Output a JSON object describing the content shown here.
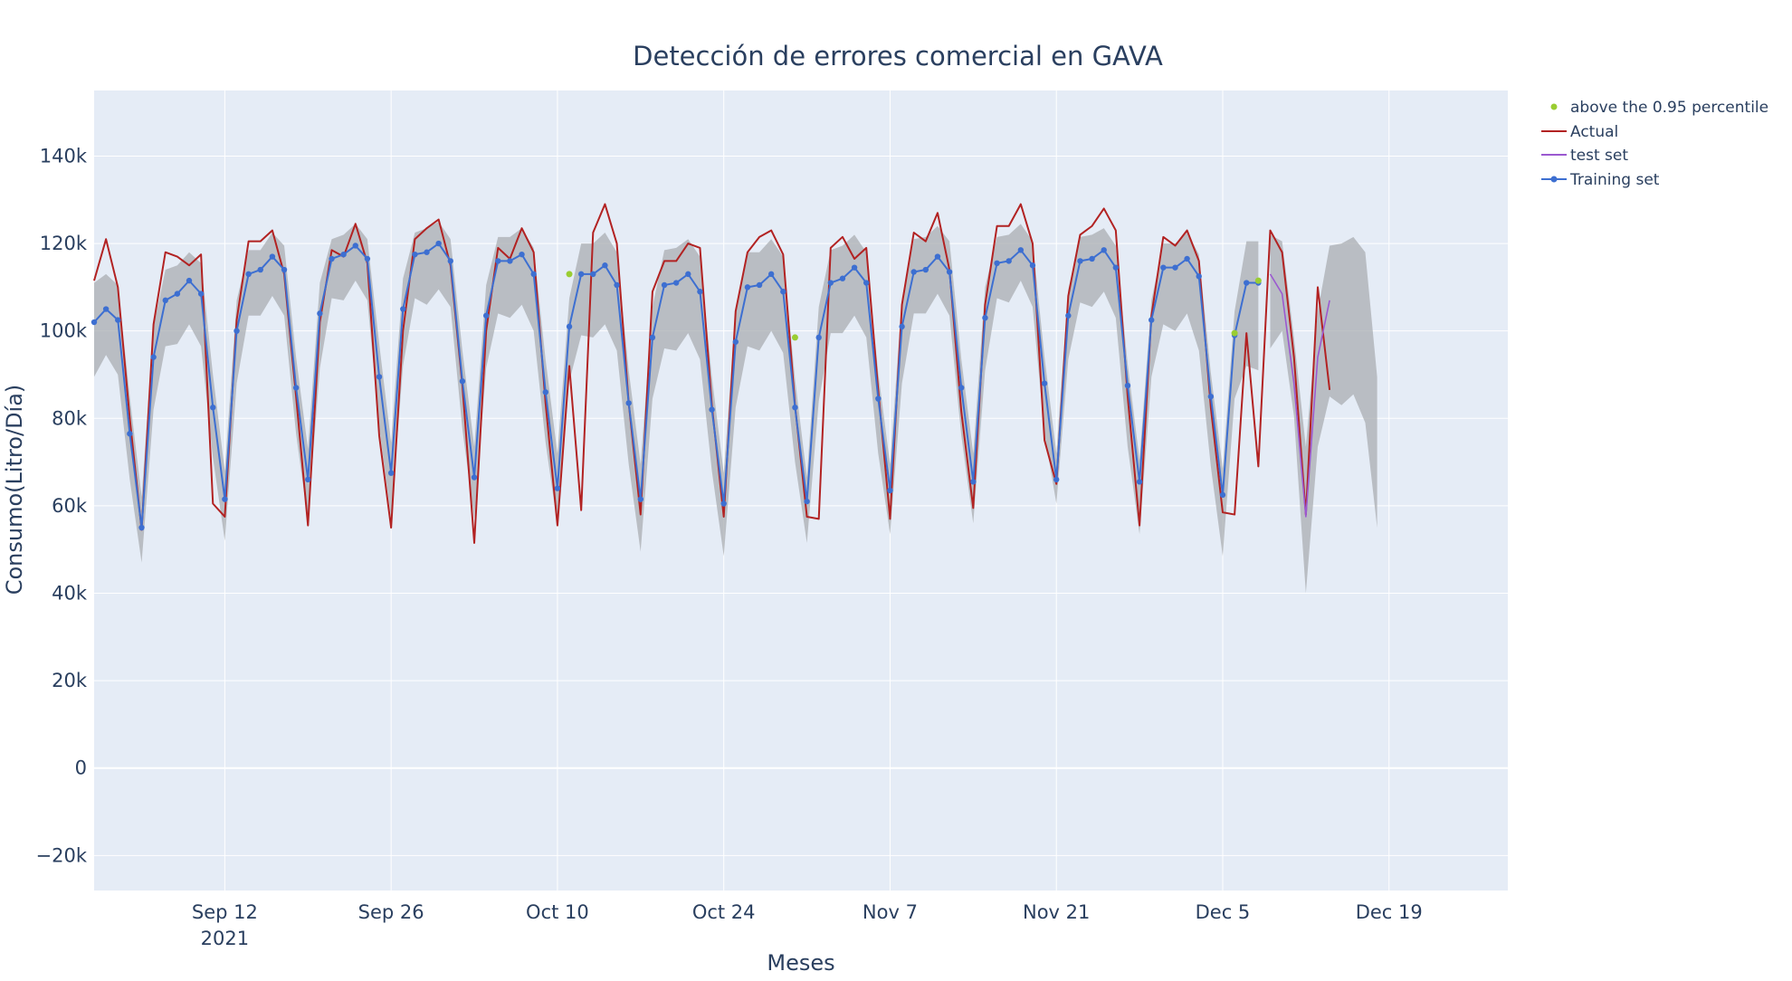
{
  "chart_data": {
    "type": "line",
    "title": "Detección de errores comercial en GAVA",
    "xlabel": "Meses",
    "ylabel": "Consumo(Litro/Día)",
    "x_start": "2021-09-01",
    "xlim": [
      "2021-09-01",
      "2021-12-29"
    ],
    "ylim": [
      -28000,
      155000
    ],
    "x_ticks": [
      {
        "date": "2021-09-12",
        "label": "Sep 12",
        "sublabel": "2021"
      },
      {
        "date": "2021-09-26",
        "label": "Sep 26"
      },
      {
        "date": "2021-10-10",
        "label": "Oct 10"
      },
      {
        "date": "2021-10-24",
        "label": "Oct 24"
      },
      {
        "date": "2021-11-07",
        "label": "Nov 7"
      },
      {
        "date": "2021-11-21",
        "label": "Nov 21"
      },
      {
        "date": "2021-12-05",
        "label": "Dec 5"
      },
      {
        "date": "2021-12-19",
        "label": "Dec 19"
      }
    ],
    "y_ticks": [
      {
        "value": -20000,
        "label": "−20k"
      },
      {
        "value": 0,
        "label": "0"
      },
      {
        "value": 20000,
        "label": "20k"
      },
      {
        "value": 40000,
        "label": "40k"
      },
      {
        "value": 60000,
        "label": "60k"
      },
      {
        "value": 80000,
        "label": "80k"
      },
      {
        "value": 100000,
        "label": "100k"
      },
      {
        "value": 120000,
        "label": "120k"
      },
      {
        "value": 140000,
        "label": "140k"
      }
    ],
    "grid": true,
    "legend_position": "top-right",
    "colors": {
      "plot_background": "#e5ecf6",
      "grid": "#ffffff",
      "band": "#a9adb2",
      "actual": "#b22222",
      "test": "#9b59d0",
      "training": "#3d6fd1",
      "anomaly": "#9acd32"
    },
    "series": [
      {
        "name": "Training set",
        "mode": "lines+markers",
        "y": [
          102000,
          105000,
          102500,
          76500,
          55000,
          94000,
          107000,
          108500,
          111500,
          108500,
          82500,
          61500,
          100000,
          113000,
          114000,
          117000,
          114000,
          87000,
          66000,
          104000,
          116500,
          117500,
          119500,
          116500,
          89500,
          67500,
          105000,
          117500,
          118000,
          120000,
          116000,
          88500,
          66500,
          103500,
          116000,
          116000,
          117500,
          113000,
          86000,
          64000,
          101000,
          113000,
          113000,
          115000,
          110500,
          83500,
          61500,
          98500,
          110500,
          111000,
          113000,
          109000,
          82000,
          60500,
          97500,
          110000,
          110500,
          113000,
          109000,
          82500,
          61000,
          98500,
          111000,
          112000,
          114500,
          111000,
          84500,
          63500,
          101000,
          113500,
          114000,
          117000,
          113500,
          87000,
          65500,
          103000,
          115500,
          116000,
          118500,
          115000,
          88000,
          66000,
          103500,
          116000,
          116500,
          118500,
          114500,
          87500,
          65500,
          102500,
          114500,
          114500,
          116500,
          112500,
          85000,
          62500,
          99000,
          111000,
          111000
        ]
      },
      {
        "name": "Training set upper band",
        "y": [
          111000,
          113000,
          110500,
          85000,
          62000,
          101000,
          114000,
          115000,
          118000,
          115500,
          90000,
          68000,
          107000,
          118500,
          118500,
          122500,
          119500,
          94000,
          73000,
          111000,
          121000,
          122000,
          124500,
          121000,
          97000,
          74500,
          112000,
          122500,
          123500,
          125000,
          121000,
          95500,
          73500,
          110500,
          121500,
          121500,
          123500,
          119000,
          93500,
          72000,
          107500,
          120000,
          120000,
          122500,
          118000,
          91000,
          69500,
          105500,
          118500,
          119000,
          121000,
          117000,
          89500,
          67500,
          104500,
          118000,
          118000,
          121000,
          117000,
          89000,
          66500,
          105500,
          118500,
          119500,
          122000,
          118000,
          90500,
          69500,
          107500,
          121000,
          121500,
          124000,
          120500,
          93500,
          72000,
          110000,
          121500,
          122000,
          124500,
          120500,
          94000,
          72000,
          109500,
          121500,
          122000,
          123500,
          119500,
          92500,
          70500,
          107000,
          120000,
          120000,
          122500,
          117500,
          90500,
          68500,
          104500,
          120500,
          120500
        ]
      },
      {
        "name": "Training set lower band",
        "y": [
          89500,
          94500,
          90000,
          66000,
          47000,
          82000,
          96500,
          97000,
          101500,
          96500,
          71000,
          52000,
          88000,
          103500,
          103500,
          108000,
          103500,
          76500,
          56500,
          91500,
          107500,
          107000,
          111500,
          107000,
          78000,
          57000,
          92000,
          107500,
          106000,
          109500,
          105500,
          77500,
          57000,
          91500,
          104000,
          103000,
          106000,
          100000,
          74500,
          55500,
          88500,
          99000,
          98500,
          101500,
          95500,
          69500,
          49500,
          84500,
          96000,
          95500,
          99500,
          93500,
          68000,
          48500,
          82500,
          96500,
          95500,
          100000,
          95000,
          70000,
          51500,
          84000,
          99500,
          99500,
          103500,
          98500,
          72000,
          53500,
          88000,
          104000,
          104000,
          108500,
          103500,
          76000,
          56000,
          91000,
          107500,
          106500,
          111500,
          105500,
          76500,
          60500,
          93500,
          106500,
          105500,
          109000,
          103000,
          73500,
          53500,
          89500,
          101500,
          100000,
          104000,
          95500,
          69000,
          48500,
          84500,
          92000,
          91000
        ]
      },
      {
        "name": "Actual",
        "y": [
          111500,
          121000,
          110000,
          80000,
          54500,
          101500,
          118000,
          117000,
          115000,
          117500,
          60500,
          57500,
          102500,
          120500,
          120500,
          123000,
          113000,
          85000,
          55500,
          102000,
          118500,
          117000,
          124500,
          115500,
          76000,
          55000,
          100000,
          121000,
          123500,
          125500,
          115000,
          87500,
          51500,
          100000,
          119000,
          116500,
          123500,
          118000,
          83500,
          55500,
          92000,
          59000,
          122500,
          129000,
          120000,
          83500,
          58000,
          109000,
          116000,
          116000,
          120000,
          119000,
          83000,
          57500,
          104500,
          118000,
          121500,
          123000,
          117500,
          83000,
          57500,
          57000,
          119000,
          121500,
          116500,
          119000,
          86500,
          57000,
          106000,
          122500,
          120500,
          127000,
          114000,
          81500,
          59500,
          106000,
          124000,
          124000,
          129000,
          120000,
          75000,
          65000,
          108000,
          122000,
          124000,
          128000,
          123000,
          85000,
          55500,
          103500,
          121500,
          119500,
          123000,
          116000,
          82500,
          58500,
          58000,
          99500,
          69000,
          123000,
          118000,
          94000,
          58000,
          110000,
          86500
        ],
        "anomaly_x": [
          "2021-10-11",
          "2021-10-30",
          "2021-12-06",
          "2021-12-08"
        ],
        "anomaly_y": [
          113000,
          98500,
          99500,
          111500
        ]
      },
      {
        "name": "test set",
        "x_start": "2021-12-09",
        "y": [
          113000,
          108500,
          88000,
          57500,
          94000,
          107000
        ]
      },
      {
        "name": "test set upper band",
        "x_start": "2021-12-09",
        "y": [
          122000,
          120500,
          98500,
          73500,
          104500,
          119500,
          120000,
          121500,
          118000,
          89500
        ]
      },
      {
        "name": "test set lower band",
        "x_start": "2021-12-09",
        "y": [
          96000,
          100000,
          80500,
          40000,
          73500,
          85000,
          83000,
          85500,
          79000,
          55000
        ]
      },
      {
        "name": "above the 0.95 percentile",
        "mode": "markers"
      }
    ],
    "legend": [
      "above the 0.95 percentile",
      "Actual",
      "test set",
      "Training set"
    ]
  }
}
